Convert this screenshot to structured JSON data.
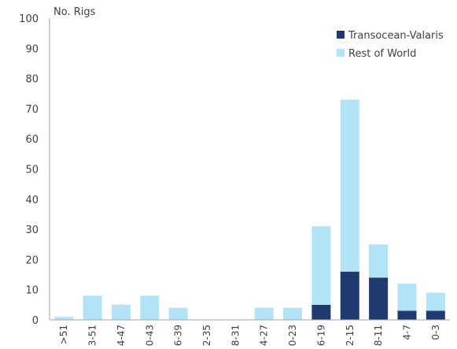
{
  "chart_data": {
    "type": "bar",
    "stacked": true,
    "ylabel": "No. Rigs",
    "xlabel": "",
    "ylim": [
      0,
      100
    ],
    "yticks": [
      0,
      10,
      20,
      30,
      40,
      50,
      60,
      70,
      80,
      90,
      100
    ],
    "categories": [
      ">51",
      "3-51",
      "4-47",
      "0-43",
      "6-39",
      "2-35",
      "8-31",
      "4-27",
      "0-23",
      "6-19",
      "2-15",
      "8-11",
      "4-7",
      "0-3"
    ],
    "series": [
      {
        "name": "Transocean-Valaris",
        "color": "#1f3a6e",
        "values": [
          0,
          0,
          0,
          0,
          0,
          0,
          0,
          0,
          0,
          5,
          16,
          14,
          3,
          3
        ]
      },
      {
        "name": "Rest of World",
        "color": "#b3e3f7",
        "values": [
          1,
          8,
          5,
          8,
          4,
          0,
          0,
          4,
          4,
          26,
          57,
          11,
          9,
          6
        ]
      }
    ],
    "legend_position": "top-right",
    "grid": false
  }
}
